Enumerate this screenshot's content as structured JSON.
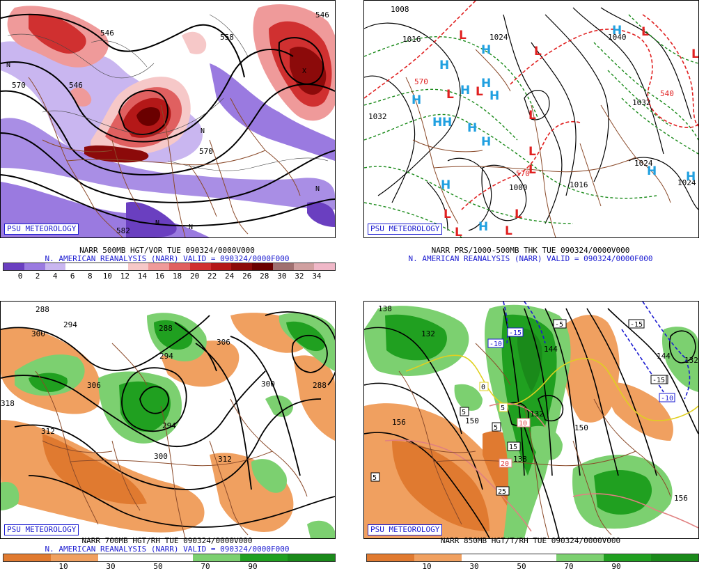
{
  "panels": [
    {
      "logo": "PSU METEOROLOGY",
      "title": "NARR 500MB HGT/VOR TUE 090324/0000V000",
      "subtitle": "N. AMERICAN REANALYSIS (NARR) VALID = 090324/0000F000",
      "colorbar": {
        "colors": [
          "#6a3fc0",
          "#9a7ae0",
          "#c9b6f0",
          "#ffffff",
          "#ffffff",
          "#ffffff",
          "#f6c8c8",
          "#ef9a9a",
          "#e06060",
          "#d03030",
          "#b41818",
          "#8c0a0a",
          "#6a0000",
          "#a07070",
          "#d0a0a0",
          "#f0b8c8"
        ],
        "labels": [
          "0",
          "2",
          "4",
          "6",
          "8",
          "10",
          "12",
          "14",
          "16",
          "18",
          "20",
          "22",
          "24",
          "26",
          "28",
          "30",
          "32",
          "34"
        ]
      },
      "contour_labels": [
        "546",
        "558",
        "570",
        "582",
        "546",
        "570",
        "546"
      ]
    },
    {
      "logo": "PSU METEOROLOGY",
      "title": "NARR PRS/1000-500MB THK TUE 090324/0000V000",
      "subtitle": "N. AMERICAN REANALYSIS (NARR) VALID = 090324/0000F000",
      "contour_labels": [
        "1008",
        "1016",
        "1024",
        "1040",
        "1032",
        "1000",
        "1016",
        "1024",
        "1024",
        "1032",
        "570",
        "570",
        "540"
      ]
    },
    {
      "logo": "PSU METEOROLOGY",
      "title": "NARR 700MB HGT/RH TUE 090324/0000V000",
      "subtitle": "N. AMERICAN REANALYSIS (NARR) VALID = 090324/0000F000",
      "colorbar": {
        "colors": [
          "#e07a30",
          "#f0a060",
          "#ffffff",
          "#ffffff",
          "#7cd070",
          "#20a020",
          "#1a8a1a"
        ],
        "labels": [
          "10",
          "30",
          "50",
          "70",
          "90"
        ]
      },
      "contour_labels": [
        "288",
        "294",
        "300",
        "306",
        "306",
        "312",
        "294",
        "288",
        "300",
        "300",
        "312",
        "318",
        "288",
        "294"
      ]
    },
    {
      "logo": "PSU METEOROLOGY",
      "title": "NARR 850MB HGT/T/RH TUE 090324/0000V000",
      "colorbar": {
        "colors": [
          "#e07a30",
          "#f0a060",
          "#ffffff",
          "#ffffff",
          "#7cd070",
          "#20a020",
          "#1a8a1a"
        ],
        "labels": [
          "10",
          "30",
          "50",
          "70",
          "90"
        ]
      },
      "contour_labels": [
        "138",
        "132",
        "156",
        "150",
        "138",
        "132",
        "144",
        "150",
        "156",
        "144",
        "132",
        "-5",
        "-15",
        "-10",
        "-5",
        "-10",
        "-15",
        "-15",
        "10",
        "15",
        "20",
        "25",
        "5",
        "5",
        "5",
        "0",
        "5",
        "10"
      ]
    }
  ],
  "symbols": {
    "high": "H",
    "low": "L",
    "north": "N",
    "x": "X"
  },
  "colors": {
    "high": "#20a0e0",
    "low": "#e02020",
    "logo": "#1a1ad0",
    "border": "#8a4a2a"
  }
}
